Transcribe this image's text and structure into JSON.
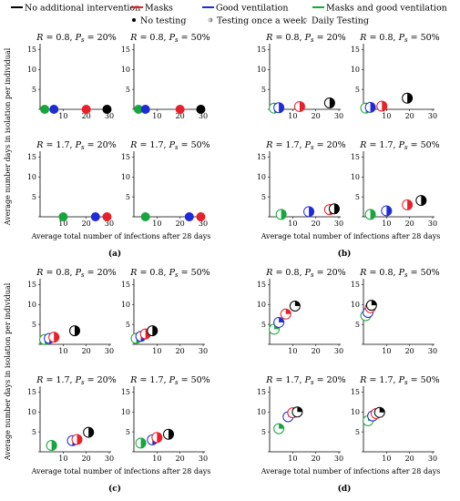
{
  "legend": {
    "interventions": [
      {
        "label": "No additional intervention",
        "color": "#000000"
      },
      {
        "label": "Masks",
        "color": "#e8202a"
      },
      {
        "label": "Good ventilation",
        "color": "#1f2bd6"
      },
      {
        "label": "Masks and good ventilation",
        "color": "#18a53b"
      }
    ],
    "testing": [
      {
        "label": "No testing",
        "style": "filled"
      },
      {
        "label": "Testing once a week",
        "style": "half"
      },
      {
        "label": "Daily Testing",
        "style": "open"
      }
    ]
  },
  "colors": {
    "none": "#000000",
    "masks": "#e8202a",
    "vent": "#1f2bd6",
    "both": "#18a53b"
  },
  "chart_data": [
    {
      "type": "scatter",
      "label": "(a)",
      "xlabel": "Average total number of infections after 28 days",
      "ylabel": "Average number days in isolation per individual",
      "xticks": [
        10,
        20,
        30
      ],
      "yticks": [
        0,
        5,
        10,
        15
      ],
      "xlim": [
        0,
        30
      ],
      "ylim": [
        0,
        16
      ],
      "panels": [
        {
          "title": "R = 0.8, P_s = 20%",
          "R": "0.8",
          "Ps": "20%",
          "points": [
            {
              "series": "both",
              "x": 2,
              "y": 0
            },
            {
              "series": "vent",
              "x": 6,
              "y": 0
            },
            {
              "series": "masks",
              "x": 20,
              "y": 0
            },
            {
              "series": "none",
              "x": 29,
              "y": 0
            }
          ]
        },
        {
          "title": "R = 0.8, P_s = 50%",
          "R": "0.8",
          "Ps": "50%",
          "points": [
            {
              "series": "both",
              "x": 2,
              "y": 0
            },
            {
              "series": "vent",
              "x": 5,
              "y": 0
            },
            {
              "series": "masks",
              "x": 20,
              "y": 0
            },
            {
              "series": "none",
              "x": 29,
              "y": 0
            }
          ]
        },
        {
          "title": "R = 1.7, P_s = 20%",
          "R": "1.7",
          "Ps": "20%",
          "points": [
            {
              "series": "both",
              "x": 10,
              "y": 0
            },
            {
              "series": "vent",
              "x": 24,
              "y": 0
            },
            {
              "series": "masks",
              "x": 29,
              "y": 0
            }
          ]
        },
        {
          "title": "R = 1.7, P_s = 50%",
          "R": "1.7",
          "Ps": "50%",
          "points": [
            {
              "series": "both",
              "x": 5,
              "y": 0
            },
            {
              "series": "vent",
              "x": 24,
              "y": 0
            },
            {
              "series": "masks",
              "x": 29,
              "y": 0
            }
          ]
        }
      ]
    },
    {
      "type": "scatter",
      "label": "(b)",
      "xlabel": "Average total number of infections after 28 days",
      "ylabel": "",
      "xticks": [
        10,
        20,
        30
      ],
      "yticks": [
        0,
        5,
        10,
        15
      ],
      "xlim": [
        0,
        30
      ],
      "ylim": [
        0,
        16
      ],
      "panels": [
        {
          "title": "R = 0.8, P_s = 20%",
          "R": "0.8",
          "Ps": "20%",
          "points": [
            {
              "series": "both",
              "x": 2,
              "y": 0.3
            },
            {
              "series": "vent",
              "x": 4,
              "y": 0.4
            },
            {
              "series": "masks",
              "x": 13,
              "y": 0.7
            },
            {
              "series": "none",
              "x": 26,
              "y": 1.6
            }
          ]
        },
        {
          "title": "R = 0.8, P_s = 50%",
          "R": "0.8",
          "Ps": "50%",
          "points": [
            {
              "series": "both",
              "x": 1,
              "y": 0.3
            },
            {
              "series": "vent",
              "x": 3,
              "y": 0.5
            },
            {
              "series": "masks",
              "x": 8,
              "y": 0.8
            },
            {
              "series": "none",
              "x": 19,
              "y": 2.8
            }
          ]
        },
        {
          "title": "R = 1.7, P_s = 20%",
          "R": "1.7",
          "Ps": "20%",
          "points": [
            {
              "series": "both",
              "x": 5,
              "y": 0.6
            },
            {
              "series": "vent",
              "x": 17,
              "y": 1.3
            },
            {
              "series": "masks",
              "x": 26,
              "y": 1.8
            },
            {
              "series": "none",
              "x": 28,
              "y": 2.0
            }
          ]
        },
        {
          "title": "R = 1.7, P_s = 50%",
          "R": "1.7",
          "Ps": "50%",
          "points": [
            {
              "series": "both",
              "x": 3,
              "y": 0.6
            },
            {
              "series": "vent",
              "x": 10,
              "y": 1.5
            },
            {
              "series": "masks",
              "x": 19,
              "y": 3.0
            },
            {
              "series": "none",
              "x": 25,
              "y": 4.1
            }
          ]
        }
      ]
    },
    {
      "type": "scatter",
      "label": "(c)",
      "xlabel": "Average total number of infections after 28 days",
      "ylabel": "Average number days in isolation per individual",
      "xticks": [
        10,
        20,
        30
      ],
      "yticks": [
        0,
        5,
        10,
        15
      ],
      "xlim": [
        0,
        30
      ],
      "ylim": [
        0,
        16
      ],
      "panels": [
        {
          "title": "R = 0.8, P_s = 20%",
          "R": "0.8",
          "Ps": "20%",
          "points": [
            {
              "series": "both",
              "x": 2,
              "y": 1.2
            },
            {
              "series": "vent",
              "x": 4,
              "y": 1.5
            },
            {
              "series": "masks",
              "x": 6,
              "y": 1.8
            },
            {
              "series": "none",
              "x": 15,
              "y": 3.4
            }
          ]
        },
        {
          "title": "R = 0.8, P_s = 50%",
          "R": "0.8",
          "Ps": "50%",
          "points": [
            {
              "series": "both",
              "x": 1,
              "y": 1.5
            },
            {
              "series": "vent",
              "x": 3,
              "y": 2.0
            },
            {
              "series": "masks",
              "x": 5,
              "y": 2.6
            },
            {
              "series": "none",
              "x": 8,
              "y": 3.4
            }
          ]
        },
        {
          "title": "R = 1.7, P_s = 20%",
          "R": "1.7",
          "Ps": "20%",
          "points": [
            {
              "series": "both",
              "x": 5,
              "y": 1.6
            },
            {
              "series": "vent",
              "x": 14,
              "y": 2.8
            },
            {
              "series": "masks",
              "x": 16,
              "y": 3.1
            },
            {
              "series": "none",
              "x": 21,
              "y": 4.9
            }
          ]
        },
        {
          "title": "R = 1.7, P_s = 50%",
          "R": "1.7",
          "Ps": "50%",
          "points": [
            {
              "series": "both",
              "x": 3,
              "y": 2.2
            },
            {
              "series": "vent",
              "x": 8,
              "y": 3.0
            },
            {
              "series": "masks",
              "x": 10,
              "y": 3.6
            },
            {
              "series": "none",
              "x": 15,
              "y": 4.4
            }
          ]
        }
      ]
    },
    {
      "type": "scatter",
      "label": "(d)",
      "xlabel": "Average total number of infections after 28 days",
      "ylabel": "",
      "xticks": [
        10,
        20,
        30
      ],
      "yticks": [
        0,
        5,
        10,
        15
      ],
      "xlim": [
        0,
        30
      ],
      "ylim": [
        0,
        16
      ],
      "panels": [
        {
          "title": "R = 0.8, P_s = 20%",
          "R": "0.8",
          "Ps": "20%",
          "points": [
            {
              "series": "both",
              "x": 2,
              "y": 3.8
            },
            {
              "series": "vent",
              "x": 4,
              "y": 5.5
            },
            {
              "series": "masks",
              "x": 7,
              "y": 7.6
            },
            {
              "series": "none",
              "x": 11,
              "y": 9.6
            }
          ]
        },
        {
          "title": "R = 0.8, P_s = 50%",
          "R": "0.8",
          "Ps": "50%",
          "points": [
            {
              "series": "both",
              "x": 1,
              "y": 7.2
            },
            {
              "series": "vent",
              "x": 2,
              "y": 8.0
            },
            {
              "series": "masks",
              "x": 3,
              "y": 9.2
            },
            {
              "series": "none",
              "x": 3.5,
              "y": 9.8
            }
          ]
        },
        {
          "title": "R = 1.7, P_s = 20%",
          "R": "1.7",
          "Ps": "20%",
          "points": [
            {
              "series": "both",
              "x": 4,
              "y": 5.8
            },
            {
              "series": "vent",
              "x": 8,
              "y": 8.8
            },
            {
              "series": "masks",
              "x": 10,
              "y": 9.8
            },
            {
              "series": "none",
              "x": 12,
              "y": 10.0
            }
          ]
        },
        {
          "title": "R = 1.7, P_s = 50%",
          "R": "1.7",
          "Ps": "50%",
          "points": [
            {
              "series": "both",
              "x": 2,
              "y": 7.8
            },
            {
              "series": "vent",
              "x": 4,
              "y": 9.0
            },
            {
              "series": "masks",
              "x": 5.5,
              "y": 9.6
            },
            {
              "series": "none",
              "x": 7,
              "y": 9.9
            }
          ]
        }
      ]
    }
  ]
}
